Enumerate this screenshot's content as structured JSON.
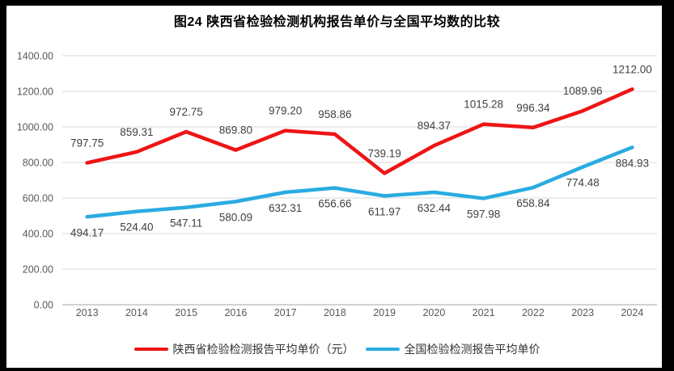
{
  "page": {
    "frame_color": "#000000",
    "card_color": "#ffffff"
  },
  "colors": {
    "grid": "#d9d9d9",
    "axis": "#c3c3c3",
    "tick_text": "#595959",
    "data_label": "#3f3f3f",
    "title_text": "#000000"
  },
  "chart_data": {
    "type": "line",
    "title": "图24 陕西省检验检测机构报告单价与全国平均数的比较",
    "xlabel": "",
    "ylabel": "",
    "categories": [
      "2013",
      "2014",
      "2015",
      "2016",
      "2017",
      "2018",
      "2019",
      "2020",
      "2021",
      "2022",
      "2023",
      "2024"
    ],
    "series": [
      {
        "name": "陕西省检验检测报告平均单价（元）",
        "color": "#ee1515",
        "label_position": "above",
        "values": [
          797.75,
          859.31,
          972.75,
          869.8,
          979.2,
          958.86,
          739.19,
          894.37,
          1015.28,
          996.34,
          1089.96,
          1212.0
        ]
      },
      {
        "name": "全国检验检测报告平均单价",
        "color": "#29abe2",
        "label_position": "below",
        "values": [
          494.17,
          524.4,
          547.11,
          580.09,
          632.31,
          656.66,
          611.97,
          632.44,
          597.98,
          658.84,
          774.48,
          884.93
        ]
      }
    ],
    "ylim": [
      0,
      1400
    ],
    "y_tick_step": 200,
    "y_tick_decimals": 2,
    "data_label_decimals": 2,
    "grid": true,
    "legend_position": "bottom"
  }
}
